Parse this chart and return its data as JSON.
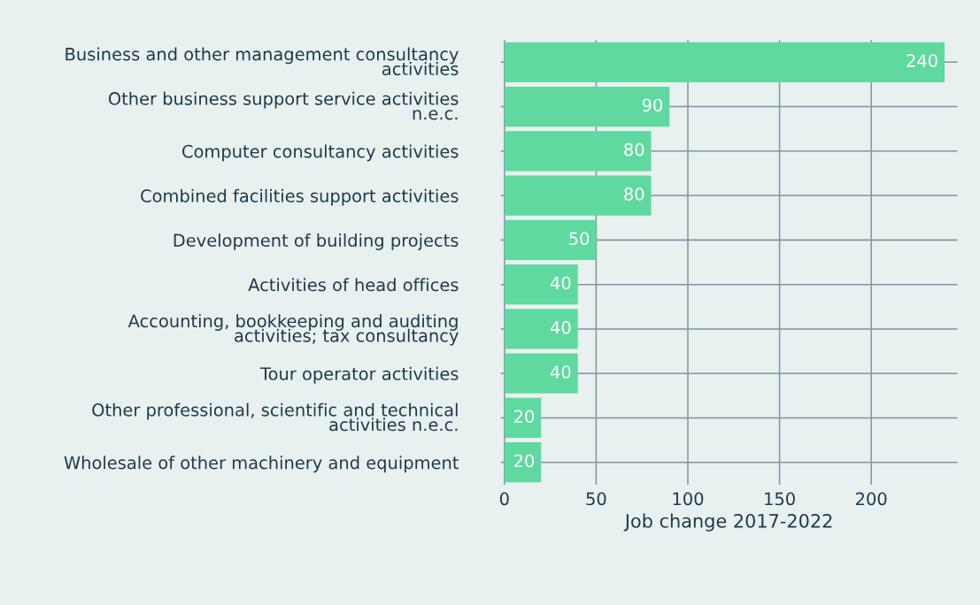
{
  "chart_data": {
    "type": "bar",
    "orientation": "horizontal",
    "xlabel": "Job change 2017-2022",
    "categories": [
      "Business and other management consultancy\nactivities",
      "Other business support service activities\nn.e.c.",
      "Computer consultancy activities",
      "Combined facilities support activities",
      "Development of building projects",
      "Activities of head offices",
      "Accounting, bookkeeping and auditing\nactivities; tax consultancy",
      "Tour operator activities",
      "Other professional, scientific and technical\nactivities n.e.c.",
      "Wholesale of other machinery and equipment"
    ],
    "values": [
      240,
      90,
      80,
      80,
      50,
      40,
      40,
      40,
      20,
      20
    ],
    "data_labels": true,
    "color": "#5fd9a0",
    "xlim": [
      -2,
      247
    ],
    "xticks": [
      0,
      50,
      100,
      150,
      200
    ],
    "grid": true
  }
}
